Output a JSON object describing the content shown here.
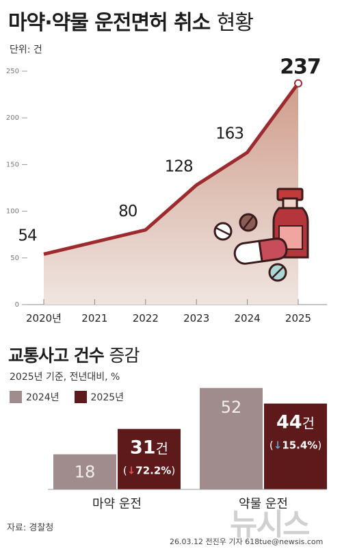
{
  "header": {
    "title_bold": "마약·약물 운전면허 취소",
    "title_light": "현황",
    "unit": "단위: 건"
  },
  "section2": {
    "title_bold": "교통사고 건수",
    "title_light": "증감",
    "note": "2025년 기준, 전년대비, %",
    "legend": [
      {
        "label": "2024년",
        "color": "#a08c8c"
      },
      {
        "label": "2025년",
        "color": "#5e1a1a"
      }
    ]
  },
  "footer": {
    "source": "자료: 경찰청",
    "credit": "26.03.12  전진우 기자 618tue@newsis.com",
    "watermark": "뉴시스"
  },
  "colors": {
    "line": "#9c2a2e",
    "area_top": "#cf9d8c",
    "area_bottom": "#efe5e0",
    "bar_2024": "#a08c8c",
    "bar_2025": "#5e1a1a",
    "down_red": "#e05252",
    "down_blue": "#5aa8d6"
  },
  "chart_data": [
    {
      "type": "area",
      "title": "마약·약물 운전면허 취소 현황",
      "unit": "건",
      "x": [
        "2020년",
        "2021",
        "2022",
        "2023",
        "2024",
        "2025"
      ],
      "series": [
        {
          "values": [
            54,
            null,
            80,
            128,
            163,
            237
          ],
          "labels": [
            "54",
            "",
            "80",
            "128",
            "163",
            "237"
          ]
        }
      ],
      "yticks": [
        0,
        50,
        100,
        150,
        200,
        250
      ],
      "ylim": [
        0,
        250
      ],
      "grid": false
    },
    {
      "type": "bar",
      "title": "교통사고 건수 증감",
      "categories": [
        "마약 운전",
        "약물 운전"
      ],
      "series": [
        {
          "name": "2024년",
          "values": [
            18,
            52
          ],
          "labels": [
            "18",
            "52"
          ]
        },
        {
          "name": "2025년",
          "values": [
            31,
            44
          ],
          "labels": [
            "31건",
            "44건"
          ],
          "change": [
            "72.2%",
            "15.4%"
          ]
        }
      ]
    }
  ]
}
